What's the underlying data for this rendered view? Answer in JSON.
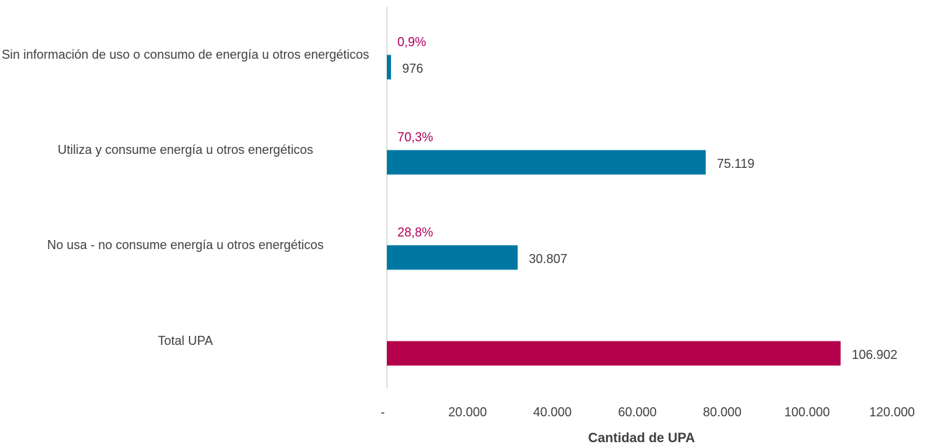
{
  "chart_data": {
    "type": "bar",
    "orientation": "horizontal",
    "categories": [
      "Sin información de uso o consumo de energía u otros energéticos",
      "Utiliza y consume energía u otros energéticos",
      "No usa - no consume energía u otros energéticos",
      "Total UPA"
    ],
    "values": [
      976,
      75119,
      30807,
      106902
    ],
    "value_labels": [
      "976",
      "75.119",
      "30.807",
      "106.902"
    ],
    "shares": [
      0.9,
      70.3,
      28.8,
      null
    ],
    "share_labels": [
      "0,9%",
      "70,3%",
      "28,8%",
      null
    ],
    "colors": [
      "#0077a3",
      "#0077a3",
      "#0077a3",
      "#b5004c"
    ],
    "xlim": [
      0,
      120000
    ],
    "xticks": [
      {
        "value": 0,
        "label": "-"
      },
      {
        "value": 20000,
        "label": "20.000"
      },
      {
        "value": 40000,
        "label": "40.000"
      },
      {
        "value": 60000,
        "label": "60.000"
      },
      {
        "value": 80000,
        "label": "80.000"
      },
      {
        "value": 100000,
        "label": "100.000"
      },
      {
        "value": 120000,
        "label": "120.000"
      }
    ],
    "xlabel": "Cantidad de UPA"
  }
}
